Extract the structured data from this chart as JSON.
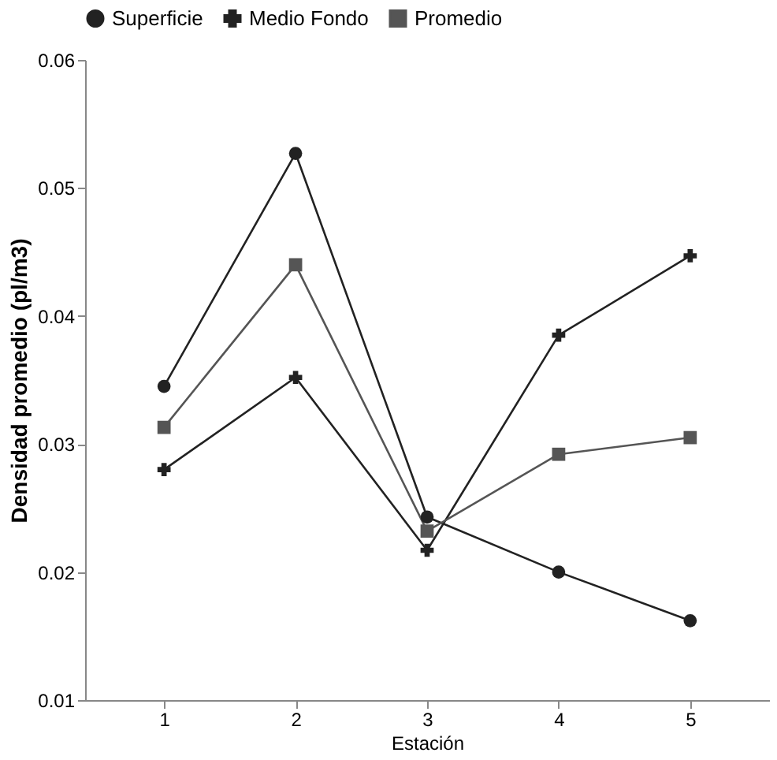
{
  "chart_data": {
    "type": "line",
    "xlabel": "Estación",
    "ylabel": "Densidad promedio (pl/m3)",
    "categories": [
      "1",
      "2",
      "3",
      "4",
      "5"
    ],
    "series": [
      {
        "name": "Superficie",
        "color": "#222222",
        "marker": "circle",
        "values": [
          0.0345,
          0.0527,
          0.0243,
          0.02,
          0.0162
        ]
      },
      {
        "name": "Medio Fondo",
        "color": "#222222",
        "marker": "cross",
        "values": [
          0.028,
          0.0352,
          0.0217,
          0.0385,
          0.0447
        ]
      },
      {
        "name": "Promedio",
        "color": "#555555",
        "marker": "square",
        "values": [
          0.0313,
          0.044,
          0.0232,
          0.0292,
          0.0305
        ]
      }
    ],
    "ylim": [
      0.01,
      0.06
    ],
    "yticks": [
      0.01,
      0.02,
      0.03,
      0.04,
      0.05,
      0.06
    ],
    "grid": false,
    "legend": "top",
    "line_style": "solid"
  }
}
